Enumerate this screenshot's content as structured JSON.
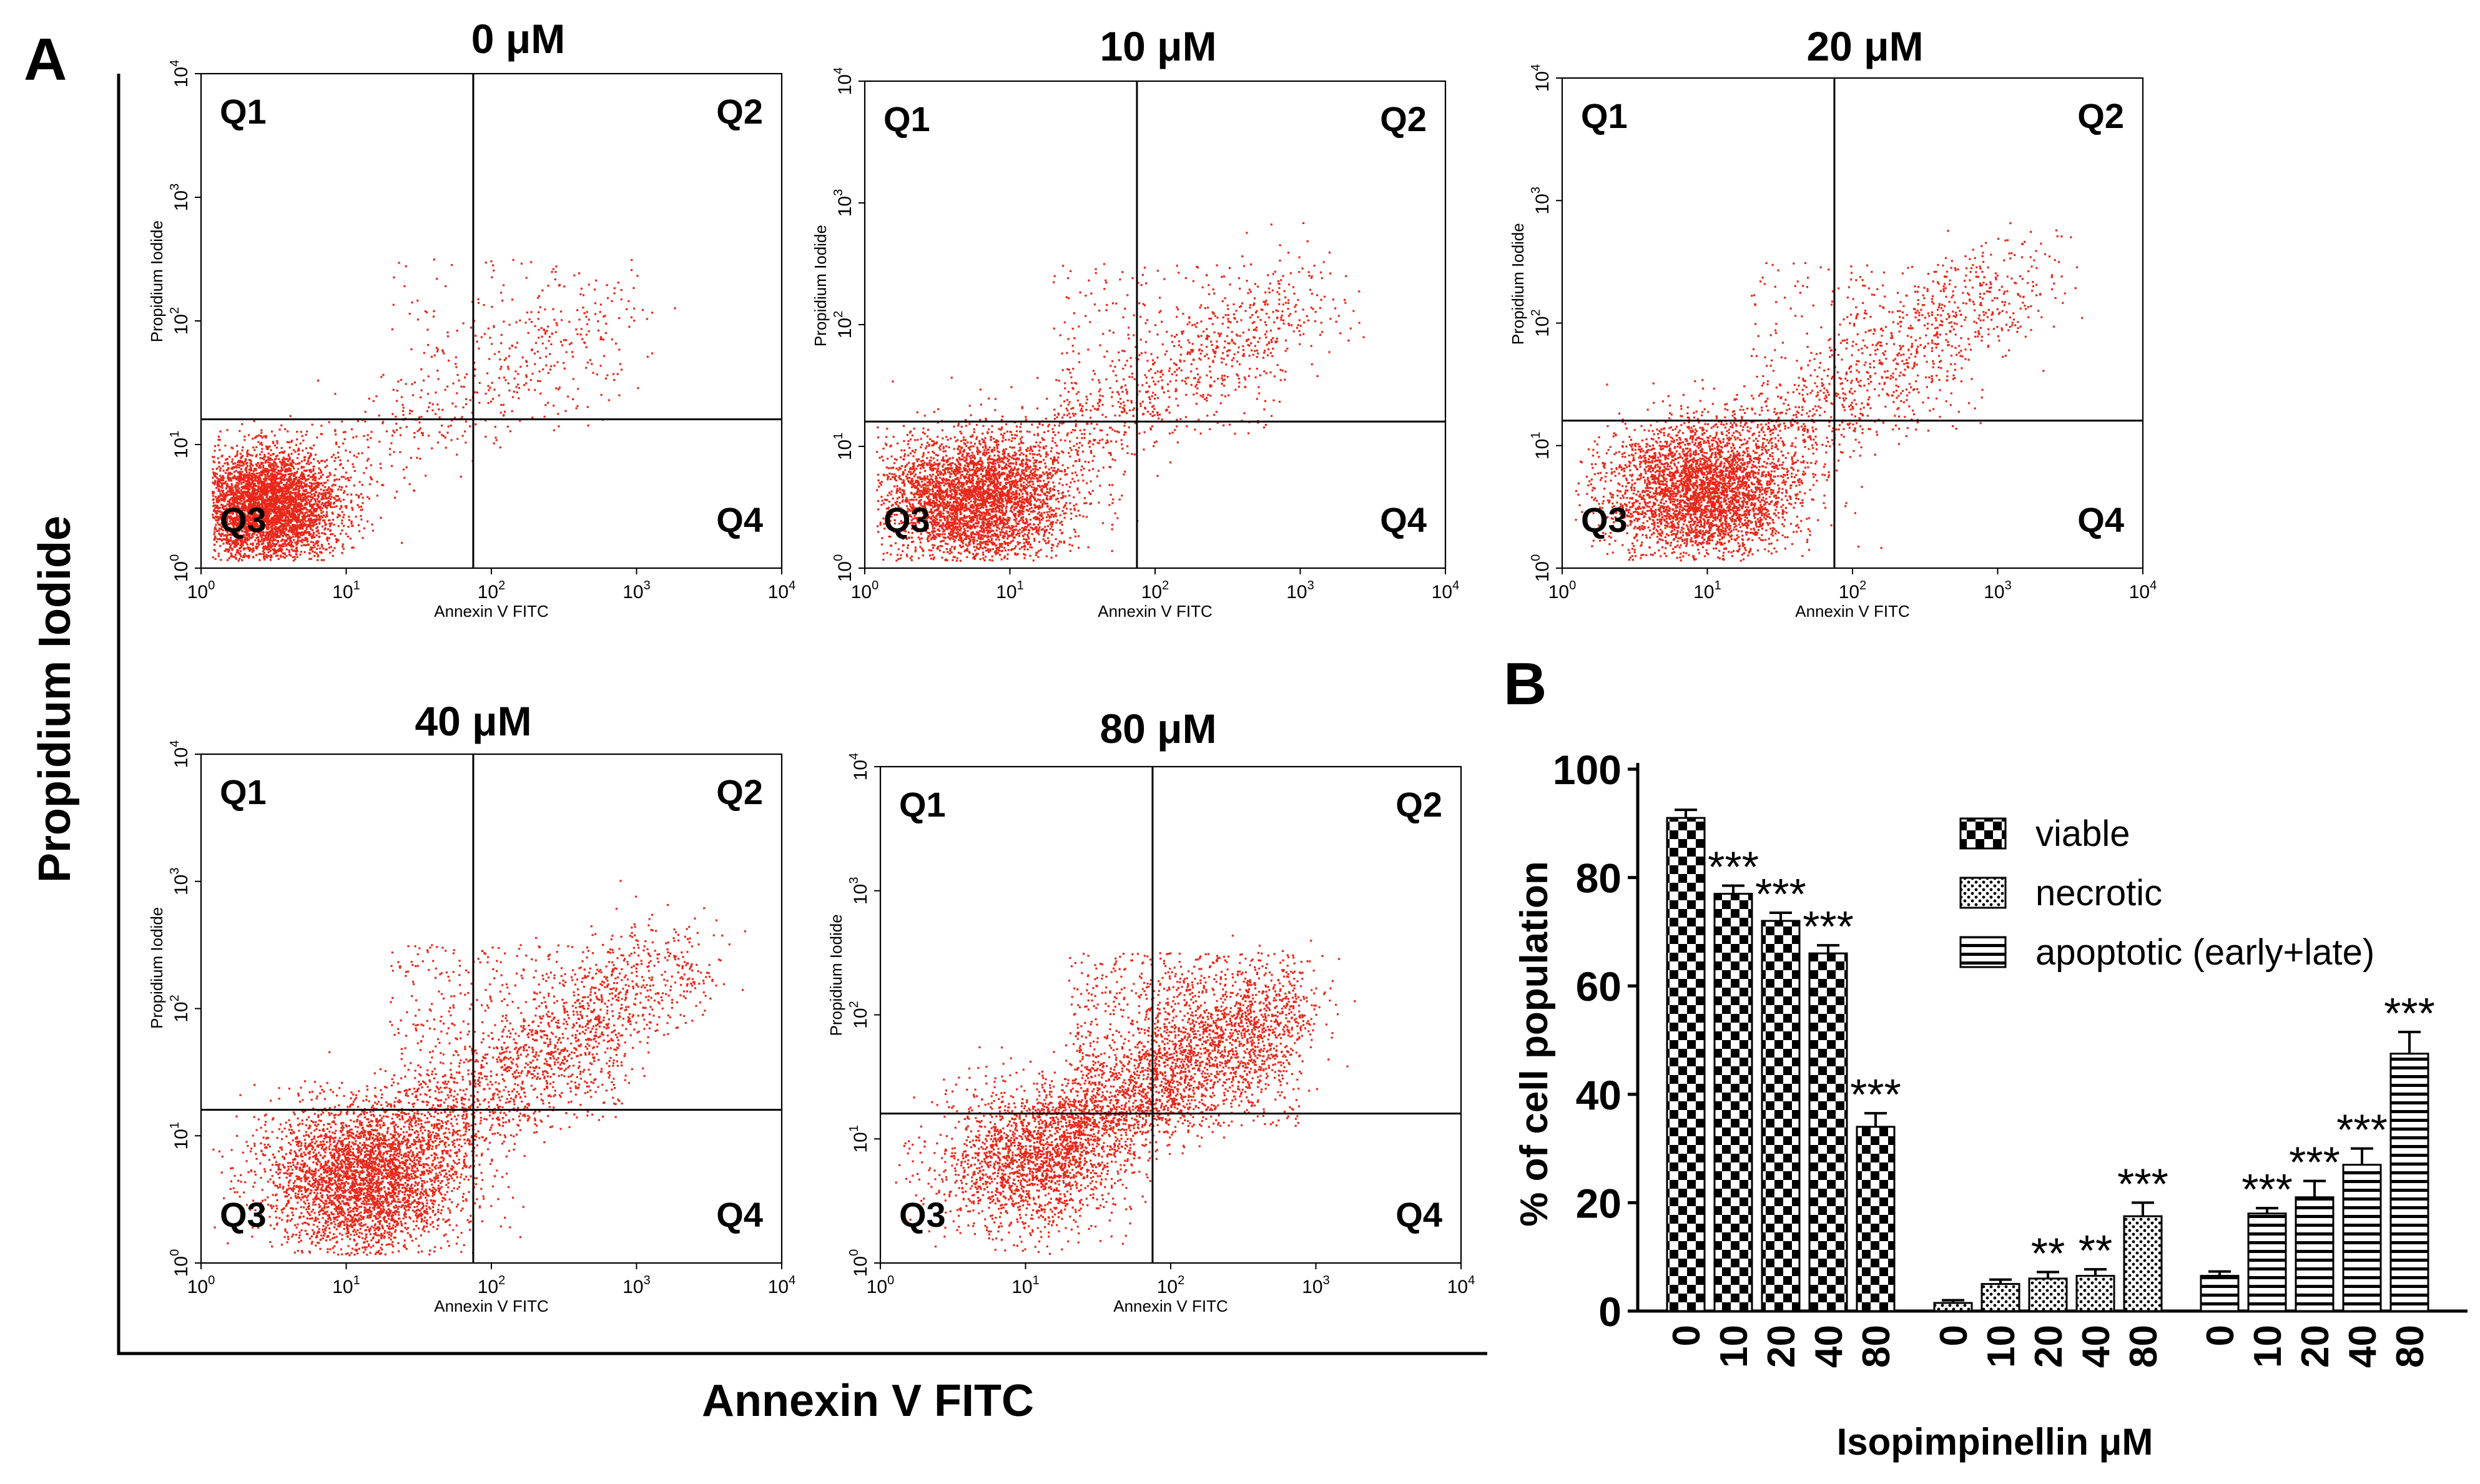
{
  "panel_a": {
    "letter": "A",
    "big_ylabel": "Propidium  Iodide",
    "big_xlabel": "Annexin V FITC",
    "ticks": {
      "base": "10",
      "exps": [
        "0",
        "1",
        "2",
        "3",
        "4"
      ]
    },
    "plot_xlabel": "Annexin V FITC",
    "plot_ylabel": "Propidium Iodide",
    "quadrants": [
      "Q1",
      "Q2",
      "Q3",
      "Q4"
    ]
  },
  "panel_b": {
    "letter": "B",
    "star": "***"
  },
  "colors": {
    "dots": "#e8281a",
    "axes": "#000000"
  },
  "chart_data": [
    {
      "type": "scatter",
      "title": "0 μM",
      "xlabel": "Annexin V FITC",
      "ylabel": "Propidium Iodide",
      "xscale": "log",
      "yscale": "log",
      "xlim": [
        1,
        10000
      ],
      "ylim": [
        1,
        10000
      ],
      "gate": {
        "x": 75,
        "y": 16
      },
      "quadrants": [
        "Q1",
        "Q2",
        "Q3",
        "Q4"
      ],
      "population": {
        "n": 4200,
        "center_log": [
          0.45,
          0.5
        ],
        "spread_log": [
          0.25,
          0.22
        ],
        "tail_n": 450,
        "tail_end_log": [
          2.9,
          2.1
        ],
        "scatter_n": 160
      }
    },
    {
      "type": "scatter",
      "title": "10 μM",
      "xlabel": "Annexin V FITC",
      "ylabel": "Propidium Iodide",
      "xscale": "log",
      "yscale": "log",
      "xlim": [
        1,
        10000
      ],
      "ylim": [
        1,
        10000
      ],
      "gate": {
        "x": 75,
        "y": 16
      },
      "quadrants": [
        "Q1",
        "Q2",
        "Q3",
        "Q4"
      ],
      "population": {
        "n": 3600,
        "center_log": [
          0.75,
          0.55
        ],
        "spread_log": [
          0.32,
          0.27
        ],
        "tail_n": 900,
        "tail_end_log": [
          3.1,
          2.3
        ],
        "scatter_n": 260
      }
    },
    {
      "type": "scatter",
      "title": "20 μM",
      "xlabel": "Annexin V FITC",
      "ylabel": "Propidium Iodide",
      "xscale": "log",
      "yscale": "log",
      "xlim": [
        1,
        10000
      ],
      "ylim": [
        1,
        10000
      ],
      "gate": {
        "x": 75,
        "y": 16
      },
      "quadrants": [
        "Q1",
        "Q2",
        "Q3",
        "Q4"
      ],
      "population": {
        "n": 3400,
        "center_log": [
          0.95,
          0.62
        ],
        "spread_log": [
          0.32,
          0.28
        ],
        "tail_n": 1000,
        "tail_end_log": [
          3.2,
          2.4
        ],
        "scatter_n": 300
      }
    },
    {
      "type": "scatter",
      "title": "40 μM",
      "xlabel": "Annexin V FITC",
      "ylabel": "Propidium Iodide",
      "xscale": "log",
      "yscale": "log",
      "xlim": [
        1,
        10000
      ],
      "ylim": [
        1,
        10000
      ],
      "gate": {
        "x": 75,
        "y": 16
      },
      "quadrants": [
        "Q1",
        "Q2",
        "Q3",
        "Q4"
      ],
      "population": {
        "n": 3200,
        "center_log": [
          1.1,
          0.65
        ],
        "spread_log": [
          0.35,
          0.3
        ],
        "tail_n": 1700,
        "tail_end_log": [
          3.3,
          2.4
        ],
        "scatter_n": 500
      }
    },
    {
      "type": "scatter",
      "title": "80 μM",
      "xlabel": "Annexin V FITC",
      "ylabel": "Propidium Iodide",
      "xscale": "log",
      "yscale": "log",
      "xlim": [
        1,
        10000
      ],
      "ylim": [
        1,
        10000
      ],
      "gate": {
        "x": 75,
        "y": 16
      },
      "quadrants": [
        "Q1",
        "Q2",
        "Q3",
        "Q4"
      ],
      "population": {
        "n": 1400,
        "center_log": [
          1.0,
          0.8
        ],
        "spread_log": [
          0.32,
          0.3
        ],
        "tail_n": 2600,
        "tail_end_log": [
          2.8,
          2.1
        ],
        "scatter_n": 900
      }
    },
    {
      "type": "bar",
      "title": "",
      "xlabel": "Isopimpinellin μM",
      "ylabel": "% of cell population",
      "ylim": [
        0,
        100
      ],
      "yticks": [
        "0",
        "20",
        "40",
        "60",
        "80",
        "100"
      ],
      "ytick_values": [
        0,
        20,
        40,
        60,
        80,
        100
      ],
      "categories": [
        "0",
        "10",
        "20",
        "40",
        "80"
      ],
      "series": [
        {
          "name": "viable",
          "pattern": "checker",
          "values": [
            91,
            77,
            72,
            66,
            34
          ],
          "errors": [
            1.5,
            1.5,
            1.5,
            1.5,
            2.5
          ],
          "significance": [
            "",
            "***",
            "***",
            "***",
            "***"
          ]
        },
        {
          "name": "necrotic",
          "pattern": "dots",
          "values": [
            1.5,
            5,
            6,
            6.5,
            17.5
          ],
          "errors": [
            0.5,
            0.8,
            1.2,
            1.2,
            2.5
          ],
          "significance": [
            "",
            "",
            "**",
            "**",
            "***"
          ]
        },
        {
          "name": "apoptotic (early+late)",
          "pattern": "stripes",
          "values": [
            6.5,
            18,
            21,
            27,
            47.5
          ],
          "errors": [
            0.8,
            1,
            3,
            3,
            4
          ],
          "significance": [
            "",
            "***",
            "***",
            "***",
            "***"
          ]
        }
      ]
    }
  ]
}
